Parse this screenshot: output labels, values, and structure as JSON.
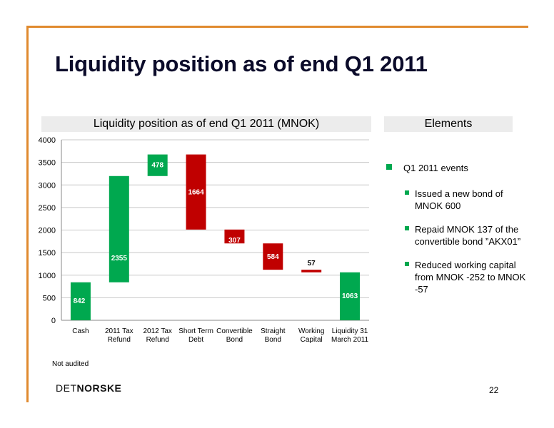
{
  "slide": {
    "title": "Liquidity position as of end Q1 2011",
    "chart_header": "Liquidity position as of end Q1 2011 (MNOK)",
    "elements_header": "Elements",
    "note": "Not audited",
    "logo": {
      "part1": "DET",
      "part2": "NORSKE"
    },
    "page_number": "22",
    "bullets": {
      "main": "Q1 2011 events",
      "items": [
        "Issued a new bond of MNOK 600",
        "Repaid MNOK 137 of the convertible bond ”AKX01”",
        "Reduced working capital from MNOK -252 to MNOK -57"
      ]
    }
  },
  "colors": {
    "green": "#00A84F",
    "red": "#C00000",
    "orange": "#E08A2E"
  },
  "chart_data": {
    "type": "bar",
    "subtype": "waterfall",
    "categories": [
      "Cash",
      "2011 Tax Refund",
      "2012 Tax Refund",
      "Short Term Debt",
      "Convertible Bond",
      "Straight Bond",
      "Working Capital",
      "Liquidity 31 March 2011"
    ],
    "bars": [
      {
        "start": 0,
        "end": 842,
        "label": "842",
        "kind": "increase"
      },
      {
        "start": 842,
        "end": 3197,
        "label": "2355",
        "kind": "increase"
      },
      {
        "start": 3197,
        "end": 3675,
        "label": "478",
        "kind": "increase"
      },
      {
        "start": 2011,
        "end": 3675,
        "label": "1664",
        "kind": "decrease"
      },
      {
        "start": 1704,
        "end": 2011,
        "label": "307",
        "kind": "decrease"
      },
      {
        "start": 1120,
        "end": 1704,
        "label": "584",
        "kind": "decrease"
      },
      {
        "start": 1063,
        "end": 1120,
        "label": "57",
        "kind": "decrease"
      },
      {
        "start": 0,
        "end": 1063,
        "label": "1063",
        "kind": "increase"
      }
    ],
    "ylim": [
      0,
      4000
    ],
    "yticks": [
      0,
      500,
      1000,
      1500,
      2000,
      2500,
      3000,
      3500,
      4000
    ],
    "grid": true,
    "legend": false
  }
}
